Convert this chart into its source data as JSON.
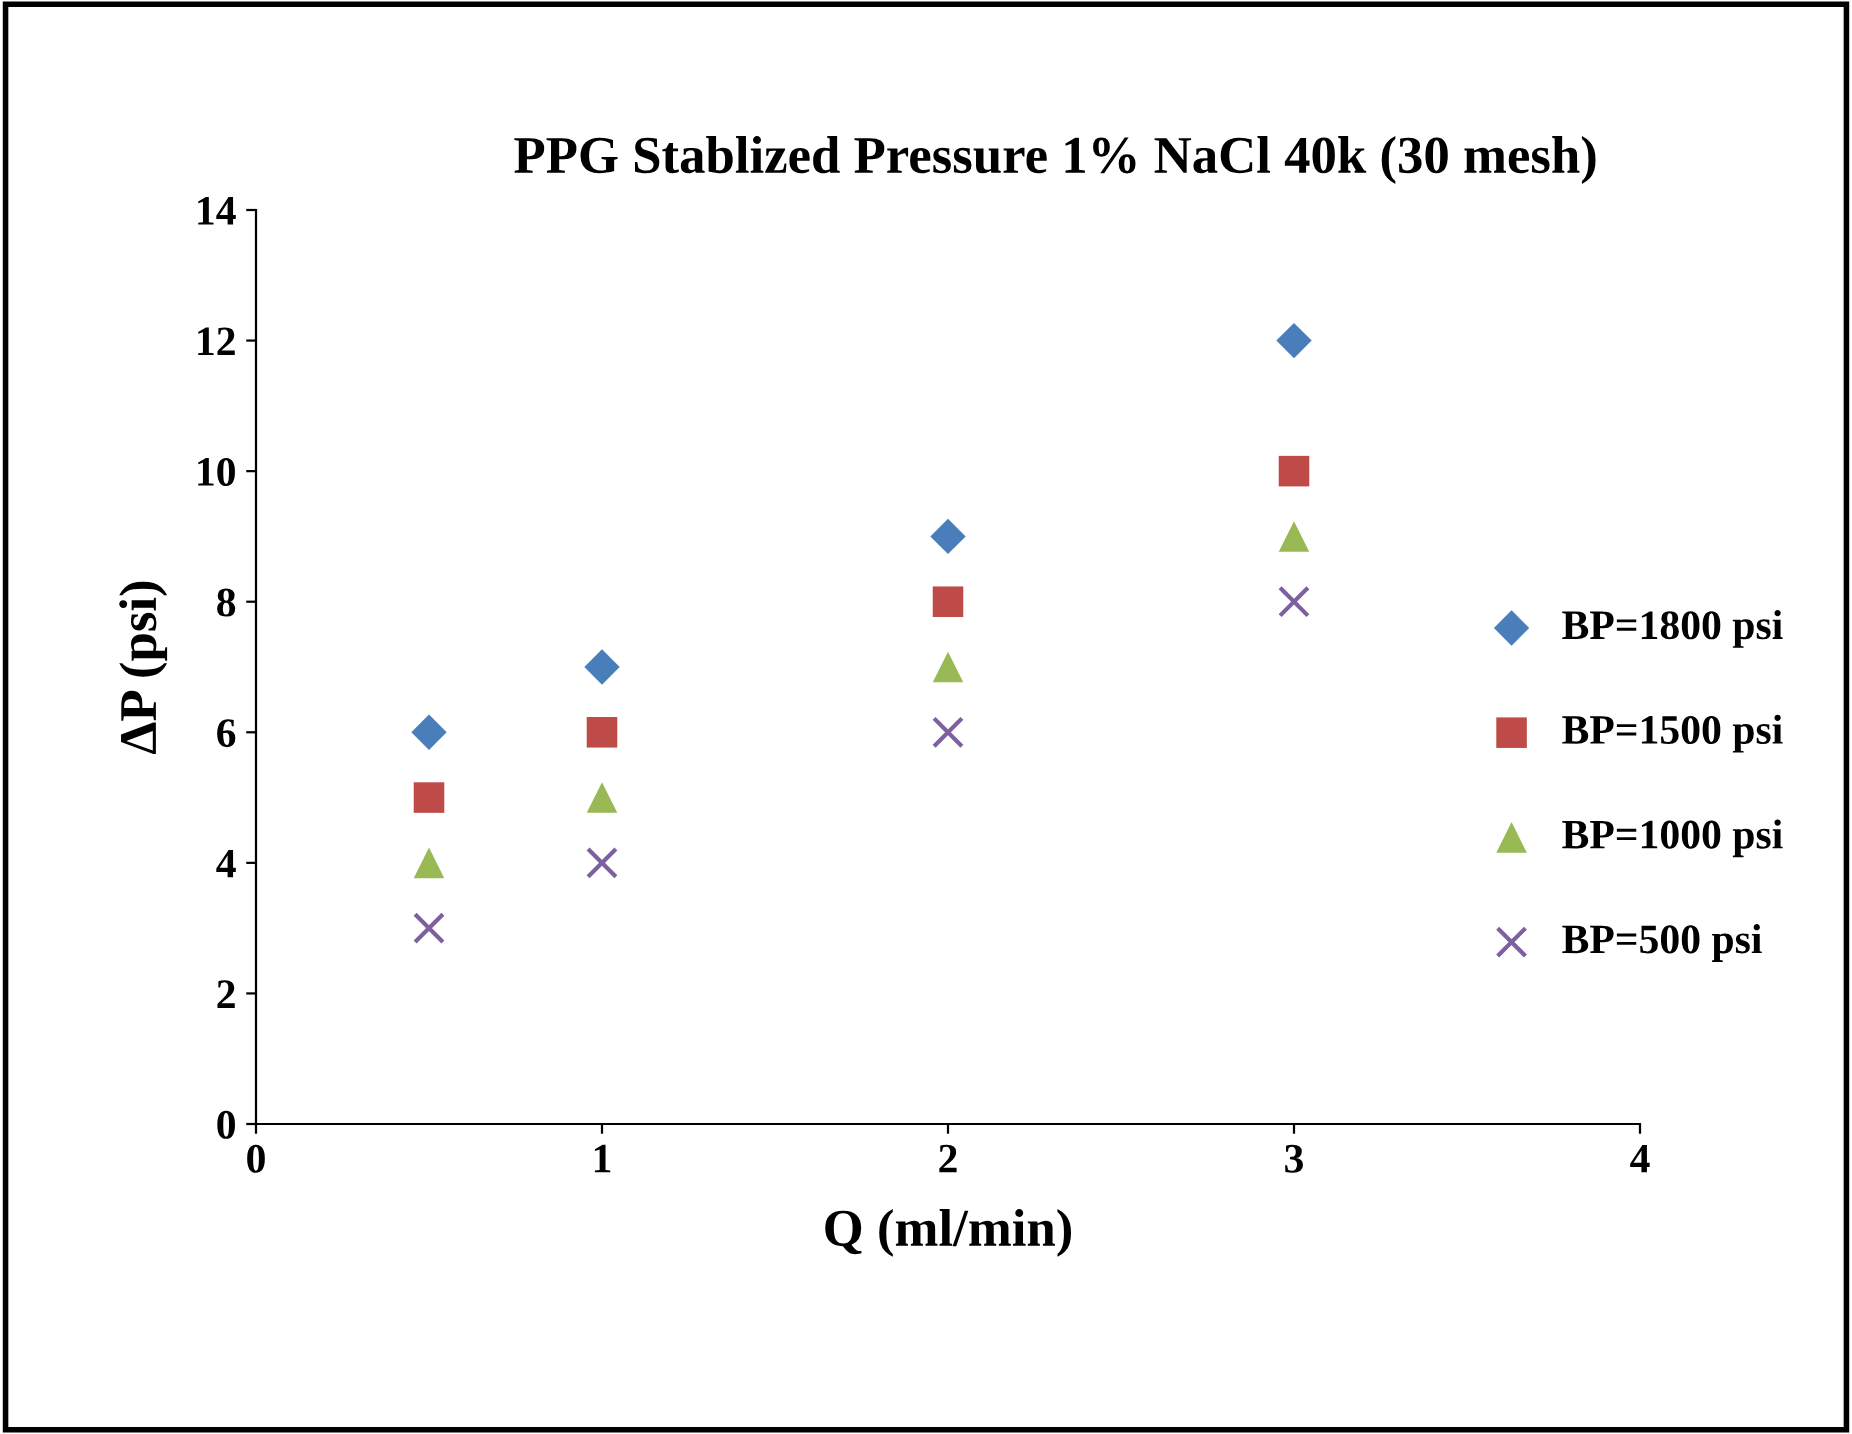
{
  "chart_data": {
    "type": "scatter",
    "title": "PPG Stablized Pressure 1% NaCl 40k (30 mesh)",
    "xlabel": "Q (ml/min)",
    "ylabel": "ΔP (psi)",
    "x": [
      0.5,
      1,
      2,
      3
    ],
    "series": [
      {
        "name": "BP=1800 psi",
        "color": "#4a7ebb",
        "marker": "diamond",
        "values": [
          6,
          7,
          9,
          12
        ]
      },
      {
        "name": "BP=1500 psi",
        "color": "#be4b48",
        "marker": "square",
        "values": [
          5,
          6,
          8,
          10
        ]
      },
      {
        "name": "BP=1000 psi",
        "color": "#98b954",
        "marker": "triangle",
        "values": [
          4,
          5,
          7,
          9
        ]
      },
      {
        "name": "BP=500 psi",
        "color": "#7d60a0",
        "marker": "cross",
        "values": [
          3,
          4,
          6,
          8
        ]
      }
    ],
    "xlim": [
      0,
      4
    ],
    "xticks": [
      0,
      1,
      2,
      3,
      4
    ],
    "ylim": [
      0,
      14
    ],
    "yticks": [
      0,
      2,
      4,
      6,
      8,
      10,
      12,
      14
    ],
    "grid": false,
    "legend": "right"
  }
}
